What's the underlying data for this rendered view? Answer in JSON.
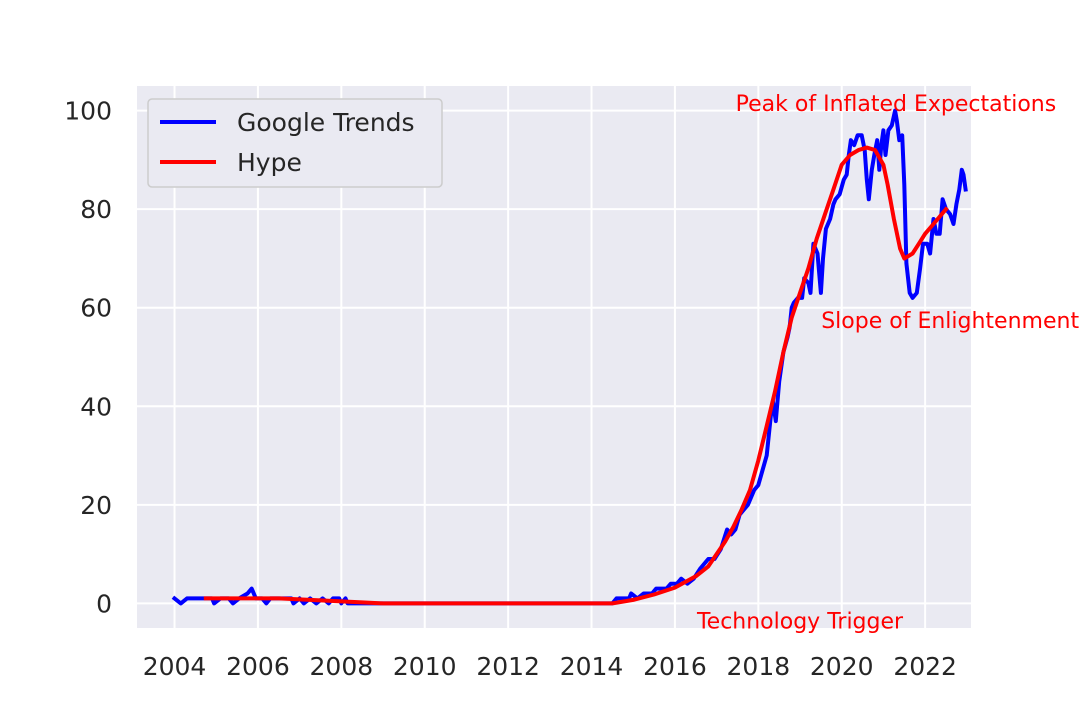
{
  "chart_data": {
    "type": "line",
    "title": "",
    "xlabel": "",
    "ylabel": "",
    "xlim": [
      2003.1,
      2023.1
    ],
    "ylim": [
      -5,
      105
    ],
    "xticks": [
      2004,
      2006,
      2008,
      2010,
      2012,
      2014,
      2016,
      2018,
      2020,
      2022
    ],
    "xtick_labels": [
      "2004",
      "2006",
      "2008",
      "2010",
      "2012",
      "2014",
      "2016",
      "2018",
      "2020",
      "2022"
    ],
    "yticks": [
      0,
      20,
      40,
      60,
      80,
      100
    ],
    "ytick_labels": [
      "0",
      "20",
      "40",
      "60",
      "80",
      "100"
    ],
    "grid": true,
    "legend_position": "top-left",
    "series": [
      {
        "name": "Google Trends",
        "color": "#0000ff",
        "points": [
          [
            2004.0,
            1
          ],
          [
            2004.15,
            0
          ],
          [
            2004.3,
            1
          ],
          [
            2004.6,
            1
          ],
          [
            2004.9,
            1
          ],
          [
            2004.95,
            0
          ],
          [
            2005.1,
            1
          ],
          [
            2005.3,
            1
          ],
          [
            2005.4,
            0
          ],
          [
            2005.55,
            1
          ],
          [
            2005.75,
            2
          ],
          [
            2005.85,
            3
          ],
          [
            2005.95,
            1
          ],
          [
            2006.1,
            1
          ],
          [
            2006.2,
            0
          ],
          [
            2006.3,
            1
          ],
          [
            2006.6,
            1
          ],
          [
            2006.8,
            1
          ],
          [
            2006.85,
            0
          ],
          [
            2007.0,
            1
          ],
          [
            2007.1,
            0
          ],
          [
            2007.25,
            1
          ],
          [
            2007.4,
            0
          ],
          [
            2007.55,
            1
          ],
          [
            2007.7,
            0
          ],
          [
            2007.8,
            1
          ],
          [
            2007.95,
            1
          ],
          [
            2008.0,
            0
          ],
          [
            2008.1,
            1
          ],
          [
            2008.15,
            0
          ],
          [
            2009.0,
            0
          ],
          [
            2010.0,
            0
          ],
          [
            2011.0,
            0
          ],
          [
            2012.0,
            0
          ],
          [
            2013.0,
            0
          ],
          [
            2014.0,
            0
          ],
          [
            2014.5,
            0
          ],
          [
            2014.6,
            1
          ],
          [
            2014.9,
            1
          ],
          [
            2014.95,
            2
          ],
          [
            2015.1,
            1
          ],
          [
            2015.25,
            2
          ],
          [
            2015.45,
            2
          ],
          [
            2015.55,
            3
          ],
          [
            2015.8,
            3
          ],
          [
            2015.9,
            4
          ],
          [
            2016.05,
            4
          ],
          [
            2016.15,
            5
          ],
          [
            2016.3,
            4
          ],
          [
            2016.45,
            5
          ],
          [
            2016.6,
            7
          ],
          [
            2016.8,
            9
          ],
          [
            2016.95,
            9
          ],
          [
            2017.1,
            11
          ],
          [
            2017.25,
            15
          ],
          [
            2017.35,
            14
          ],
          [
            2017.45,
            15
          ],
          [
            2017.55,
            18
          ],
          [
            2017.75,
            20
          ],
          [
            2017.9,
            23
          ],
          [
            2018.0,
            24
          ],
          [
            2018.1,
            27
          ],
          [
            2018.2,
            30
          ],
          [
            2018.3,
            38
          ],
          [
            2018.35,
            41
          ],
          [
            2018.42,
            37
          ],
          [
            2018.5,
            45
          ],
          [
            2018.6,
            51
          ],
          [
            2018.7,
            54
          ],
          [
            2018.75,
            56
          ],
          [
            2018.8,
            60
          ],
          [
            2018.85,
            61
          ],
          [
            2018.95,
            62
          ],
          [
            2019.05,
            62
          ],
          [
            2019.1,
            66
          ],
          [
            2019.2,
            65
          ],
          [
            2019.25,
            63
          ],
          [
            2019.32,
            73
          ],
          [
            2019.42,
            71
          ],
          [
            2019.5,
            63
          ],
          [
            2019.55,
            70
          ],
          [
            2019.62,
            76
          ],
          [
            2019.72,
            78
          ],
          [
            2019.8,
            81
          ],
          [
            2019.85,
            82
          ],
          [
            2019.95,
            83
          ],
          [
            2020.05,
            86
          ],
          [
            2020.12,
            87
          ],
          [
            2020.17,
            91
          ],
          [
            2020.22,
            94
          ],
          [
            2020.3,
            93
          ],
          [
            2020.38,
            95
          ],
          [
            2020.48,
            95
          ],
          [
            2020.55,
            92
          ],
          [
            2020.6,
            86
          ],
          [
            2020.65,
            82
          ],
          [
            2020.72,
            88
          ],
          [
            2020.78,
            91
          ],
          [
            2020.85,
            94
          ],
          [
            2020.9,
            88
          ],
          [
            2020.95,
            93
          ],
          [
            2021.0,
            96
          ],
          [
            2021.05,
            91
          ],
          [
            2021.12,
            96
          ],
          [
            2021.2,
            97
          ],
          [
            2021.28,
            100
          ],
          [
            2021.32,
            98
          ],
          [
            2021.38,
            94
          ],
          [
            2021.45,
            95
          ],
          [
            2021.5,
            85
          ],
          [
            2021.55,
            69
          ],
          [
            2021.63,
            63
          ],
          [
            2021.7,
            62
          ],
          [
            2021.8,
            63
          ],
          [
            2021.88,
            68
          ],
          [
            2021.95,
            73
          ],
          [
            2022.05,
            73
          ],
          [
            2022.12,
            71
          ],
          [
            2022.2,
            78
          ],
          [
            2022.27,
            75
          ],
          [
            2022.35,
            75
          ],
          [
            2022.42,
            82
          ],
          [
            2022.5,
            80
          ],
          [
            2022.6,
            79
          ],
          [
            2022.68,
            77
          ],
          [
            2022.75,
            81
          ],
          [
            2022.82,
            84
          ],
          [
            2022.88,
            88
          ],
          [
            2022.92,
            87
          ],
          [
            2022.97,
            84
          ]
        ]
      },
      {
        "name": "Hype",
        "color": "#ff0000",
        "points": [
          [
            2004.75,
            1
          ],
          [
            2005.5,
            1
          ],
          [
            2006.0,
            1
          ],
          [
            2006.5,
            1
          ],
          [
            2007.0,
            0.8
          ],
          [
            2007.5,
            0.6
          ],
          [
            2008.0,
            0.4
          ],
          [
            2008.5,
            0.2
          ],
          [
            2009.0,
            0
          ],
          [
            2010.0,
            0
          ],
          [
            2011.0,
            0
          ],
          [
            2012.0,
            0
          ],
          [
            2013.0,
            0
          ],
          [
            2014.0,
            0
          ],
          [
            2014.5,
            0
          ],
          [
            2015.0,
            0.7
          ],
          [
            2015.5,
            1.8
          ],
          [
            2016.0,
            3.2
          ],
          [
            2016.5,
            5.5
          ],
          [
            2016.8,
            7.5
          ],
          [
            2017.0,
            10
          ],
          [
            2017.2,
            12.5
          ],
          [
            2017.4,
            15.5
          ],
          [
            2017.6,
            19
          ],
          [
            2017.8,
            23
          ],
          [
            2018.0,
            29
          ],
          [
            2018.2,
            36
          ],
          [
            2018.4,
            43
          ],
          [
            2018.6,
            51
          ],
          [
            2018.8,
            58
          ],
          [
            2019.0,
            63
          ],
          [
            2019.2,
            68
          ],
          [
            2019.4,
            74
          ],
          [
            2019.6,
            79
          ],
          [
            2019.8,
            84
          ],
          [
            2020.0,
            89
          ],
          [
            2020.2,
            91
          ],
          [
            2020.4,
            92
          ],
          [
            2020.6,
            92.5
          ],
          [
            2020.8,
            92
          ],
          [
            2021.0,
            89
          ],
          [
            2021.1,
            85
          ],
          [
            2021.25,
            78
          ],
          [
            2021.4,
            72
          ],
          [
            2021.5,
            70
          ],
          [
            2021.7,
            71
          ],
          [
            2021.85,
            73
          ],
          [
            2022.0,
            75
          ],
          [
            2022.2,
            77
          ],
          [
            2022.4,
            79
          ],
          [
            2022.5,
            80
          ]
        ]
      }
    ],
    "annotations": [
      {
        "text": "Peak of Inflated Expectations",
        "x": 2021.3,
        "y": 101.5,
        "color": "#ff0000"
      },
      {
        "text": "Slope of Enlightenment",
        "x": 2022.6,
        "y": 57.5,
        "color": "#ff0000"
      },
      {
        "text": "Technology Trigger",
        "x": 2019.0,
        "y": -3.5,
        "color": "#ff0000"
      }
    ]
  }
}
